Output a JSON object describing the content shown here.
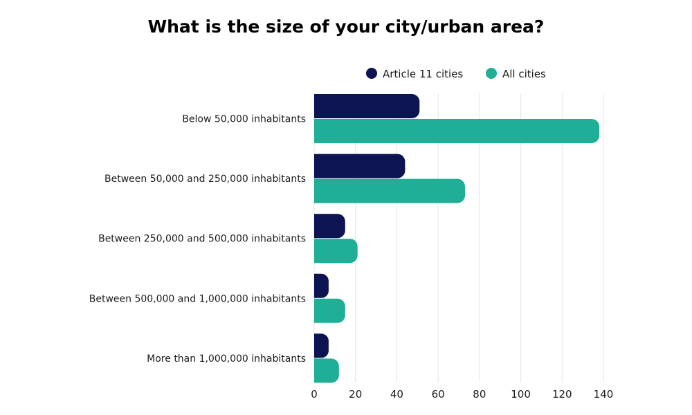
{
  "chart_data": {
    "type": "bar",
    "orientation": "horizontal",
    "title": "What is the size of your city/urban area?",
    "categories": [
      "Below 50,000 inhabitants",
      "Between 50,000 and 250,000 inhabitants",
      "Between 250,000 and 500,000 inhabitants",
      "Between 500,000 and 1,000,000 inhabitants",
      "More than 1,000,000 inhabitants"
    ],
    "series": [
      {
        "name": "Article 11 cities",
        "color": "#0d1452",
        "values": [
          51,
          44,
          15,
          7,
          7
        ]
      },
      {
        "name": "All cities",
        "color": "#1fae96",
        "values": [
          138,
          73,
          21,
          15,
          12
        ]
      }
    ],
    "xlim": [
      0,
      140
    ],
    "xticks": [
      0,
      20,
      40,
      60,
      80,
      100,
      120,
      140
    ],
    "xlabel": "",
    "ylabel": "",
    "grid": true,
    "legend_position": "top-right"
  }
}
